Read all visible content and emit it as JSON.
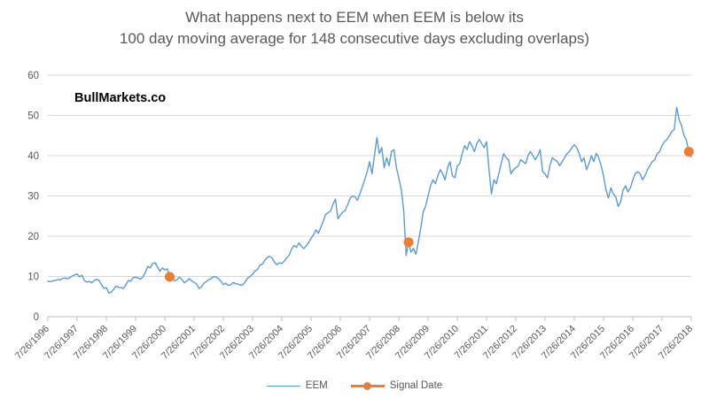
{
  "title": {
    "line1": "What happens next to EEM when EEM is below its",
    "line2": "100 day moving average for 148 consecutive days excluding overlaps)"
  },
  "watermark": "BullMarkets.co",
  "legend": [
    {
      "label": "EEM",
      "swatch": "line",
      "color": "#5B9BD5"
    },
    {
      "label": "Signal Date",
      "swatch": "line-marker",
      "color": "#ED7D31"
    }
  ],
  "colors": {
    "series_line": "#5B9BD5",
    "signal_marker": "#ED7D31",
    "gridline": "#D9D9D9",
    "axis_line": "#BFBFBF",
    "axis_text": "#595959",
    "title_text": "#595959",
    "watermark_text": "#000000"
  },
  "chart_data": {
    "type": "line",
    "title": "What happens next to EEM when EEM is below its 100 day moving average for 148 consecutive days excluding overlaps)",
    "xlabel": "",
    "ylabel": "",
    "ylim": [
      0,
      60
    ],
    "y_ticks": [
      0,
      10,
      20,
      30,
      40,
      50,
      60
    ],
    "grid": true,
    "legend_position": "bottom",
    "x_tick_labels": [
      "7/26/1996",
      "7/26/1997",
      "7/26/1998",
      "7/26/1999",
      "7/26/2000",
      "7/26/2001",
      "7/26/2002",
      "7/26/2003",
      "7/26/2004",
      "7/26/2005",
      "7/26/2006",
      "7/26/2007",
      "7/26/2008",
      "7/26/2009",
      "7/26/2010",
      "7/26/2011",
      "7/26/2012",
      "7/26/2013",
      "7/26/2014",
      "7/26/2015",
      "7/26/2016",
      "7/26/2017",
      "7/26/2018"
    ],
    "points_per_tick": 12,
    "x_start_label": "7/26/1996",
    "x_resolution": "monthly",
    "series": [
      {
        "name": "EEM",
        "color": "#5B9BD5",
        "values": [
          8.8,
          8.7,
          8.9,
          9.0,
          9.2,
          9.1,
          9.5,
          9.6,
          9.4,
          9.7,
          10.1,
          10.4,
          10.6,
          9.9,
          10.3,
          9.0,
          8.6,
          8.8,
          8.4,
          9.0,
          9.3,
          9.0,
          8.0,
          7.0,
          7.2,
          5.9,
          6.1,
          6.8,
          7.6,
          7.3,
          7.2,
          7.0,
          7.9,
          9.0,
          8.8,
          9.7,
          9.8,
          9.6,
          9.3,
          9.9,
          11.0,
          12.5,
          12.1,
          13.2,
          13.4,
          12.3,
          11.3,
          12.1,
          11.6,
          11.9,
          9.9,
          9.5,
          8.9,
          9.2,
          9.8,
          9.2,
          8.4,
          8.9,
          9.4,
          8.9,
          8.5,
          8.1,
          7.0,
          7.4,
          8.3,
          8.7,
          9.2,
          9.4,
          10.0,
          9.8,
          9.5,
          8.8,
          8.0,
          8.3,
          7.8,
          7.9,
          8.5,
          8.2,
          8.1,
          7.8,
          7.9,
          8.7,
          9.6,
          10.0,
          10.5,
          11.4,
          11.7,
          12.8,
          13.0,
          14.0,
          14.7,
          15.0,
          14.6,
          13.5,
          12.9,
          13.4,
          13.2,
          13.8,
          14.6,
          15.3,
          16.8,
          17.7,
          17.2,
          18.3,
          17.5,
          16.9,
          17.6,
          18.4,
          19.5,
          20.3,
          21.6,
          20.7,
          22.2,
          23.7,
          25.5,
          25.8,
          26.2,
          28.0,
          29.2,
          24.3,
          25.2,
          26.0,
          26.4,
          27.8,
          29.4,
          30.0,
          29.8,
          28.9,
          30.5,
          32.2,
          34.0,
          36.0,
          38.5,
          35.5,
          40.0,
          44.5,
          40.5,
          42.0,
          37.0,
          39.5,
          37.5,
          41.0,
          41.5,
          37.0,
          34.5,
          31.5,
          26.5,
          15.2,
          18.5,
          16.0,
          17.0,
          15.5,
          18.5,
          22.0,
          26.0,
          27.5,
          30.0,
          32.5,
          34.0,
          33.0,
          35.0,
          36.5,
          35.5,
          34.0,
          37.0,
          38.5,
          35.0,
          34.5,
          37.5,
          38.0,
          40.5,
          42.5,
          41.5,
          43.5,
          42.5,
          41.0,
          43.0,
          44.0,
          43.0,
          42.0,
          43.5,
          36.5,
          30.5,
          34.0,
          33.0,
          35.5,
          38.0,
          40.5,
          39.5,
          39.0,
          35.5,
          36.5,
          37.0,
          37.5,
          39.0,
          38.5,
          38.0,
          40.0,
          41.0,
          40.0,
          39.0,
          40.0,
          41.5,
          36.0,
          35.5,
          34.5,
          37.5,
          39.5,
          39.0,
          38.5,
          37.5,
          38.5,
          39.5,
          40.5,
          41.0,
          42.0,
          42.7,
          42.0,
          40.5,
          38.5,
          39.5,
          36.5,
          38.0,
          40.0,
          38.5,
          40.6,
          39.5,
          37.5,
          35.0,
          31.5,
          29.5,
          32.0,
          30.5,
          29.8,
          27.4,
          28.5,
          31.5,
          32.5,
          31.0,
          32.0,
          34.0,
          35.5,
          36.0,
          35.5,
          34.0,
          35.0,
          36.5,
          37.5,
          38.5,
          39.0,
          40.5,
          41.0,
          42.5,
          43.5,
          44.0,
          45.0,
          46.0,
          46.5,
          52.0,
          49.0,
          47.5,
          45.0,
          43.8,
          41.0,
          39.7
        ]
      }
    ],
    "signal_points": [
      {
        "index": 50,
        "value": 9.9
      },
      {
        "index": 148,
        "value": 18.5
      },
      {
        "index": 263,
        "value": 41.0
      }
    ]
  }
}
